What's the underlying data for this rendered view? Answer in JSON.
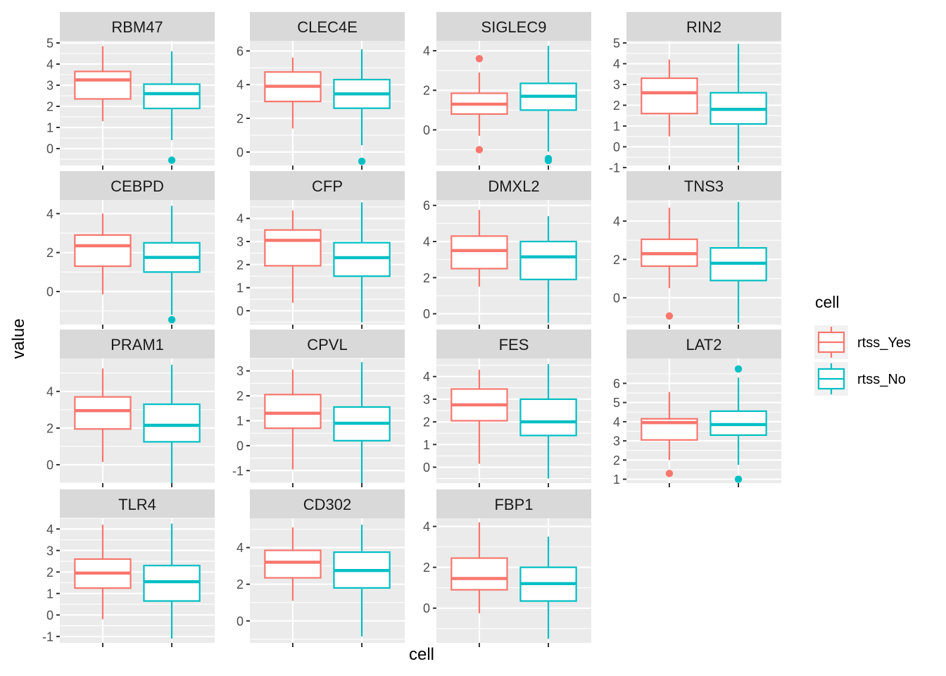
{
  "chart_data": {
    "type": "boxplot",
    "xlabel": "cell",
    "ylabel": "value",
    "legend": {
      "title": "cell",
      "placement": "right",
      "entries": [
        {
          "name": "rtss_Yes",
          "color": "#F8766D"
        },
        {
          "name": "rtss_No",
          "color": "#00BFC4"
        }
      ]
    },
    "groups": [
      "rtss_Yes",
      "rtss_No"
    ],
    "colors": {
      "rtss_Yes": "#F8766D",
      "rtss_No": "#00BFC4",
      "panel_bg": "#EBEBEB",
      "strip_bg": "#D9D9D9"
    },
    "panels": [
      {
        "title": "RBM47",
        "ylim": [
          -0.8,
          5.1
        ],
        "ticks": [
          0,
          1,
          2,
          3,
          4,
          5
        ],
        "boxes": [
          {
            "min": 1.3,
            "q1": 2.35,
            "median": 3.25,
            "q3": 3.65,
            "max": 4.85,
            "outliers": []
          },
          {
            "min": 0.4,
            "q1": 1.9,
            "median": 2.6,
            "q3": 3.05,
            "max": 4.6,
            "outliers": [
              -0.55
            ]
          }
        ]
      },
      {
        "title": "CLEC4E",
        "ylim": [
          -0.8,
          6.6
        ],
        "ticks": [
          0,
          2,
          4,
          6
        ],
        "boxes": [
          {
            "min": 1.4,
            "q1": 3.0,
            "median": 3.9,
            "q3": 4.75,
            "max": 5.6,
            "outliers": []
          },
          {
            "min": 0.4,
            "q1": 2.6,
            "median": 3.45,
            "q3": 4.3,
            "max": 6.1,
            "outliers": [
              -0.55
            ]
          }
        ]
      },
      {
        "title": "SIGLEC9",
        "ylim": [
          -1.8,
          4.5
        ],
        "ticks": [
          0,
          2,
          4
        ],
        "boxes": [
          {
            "min": -0.3,
            "q1": 0.8,
            "median": 1.3,
            "q3": 1.85,
            "max": 2.9,
            "outliers": [
              3.6,
              -1.0
            ]
          },
          {
            "min": -1.1,
            "q1": 1.0,
            "median": 1.7,
            "q3": 2.35,
            "max": 4.25,
            "outliers": [
              -1.45,
              -1.55
            ]
          }
        ]
      },
      {
        "title": "RIN2",
        "ylim": [
          -0.9,
          5.1
        ],
        "ticks": [
          -1,
          0,
          1,
          2,
          3,
          4,
          5
        ],
        "boxes": [
          {
            "min": 0.5,
            "q1": 1.6,
            "median": 2.6,
            "q3": 3.3,
            "max": 4.2,
            "outliers": []
          },
          {
            "min": -0.75,
            "q1": 1.1,
            "median": 1.8,
            "q3": 2.6,
            "max": 4.95,
            "outliers": []
          }
        ]
      },
      {
        "title": "CEBPD",
        "ylim": [
          -1.7,
          4.7
        ],
        "ticks": [
          0,
          2,
          4
        ],
        "boxes": [
          {
            "min": -0.15,
            "q1": 1.3,
            "median": 2.35,
            "q3": 2.9,
            "max": 4.0,
            "outliers": []
          },
          {
            "min": -1.2,
            "q1": 1.0,
            "median": 1.75,
            "q3": 2.5,
            "max": 4.4,
            "outliers": [
              -1.45
            ]
          }
        ]
      },
      {
        "title": "CFP",
        "ylim": [
          -0.6,
          4.8
        ],
        "ticks": [
          0,
          1,
          2,
          3,
          4
        ],
        "boxes": [
          {
            "min": 0.35,
            "q1": 1.95,
            "median": 3.05,
            "q3": 3.5,
            "max": 4.35,
            "outliers": []
          },
          {
            "min": -0.5,
            "q1": 1.5,
            "median": 2.3,
            "q3": 2.95,
            "max": 4.7,
            "outliers": []
          }
        ]
      },
      {
        "title": "DMXL2",
        "ylim": [
          -0.6,
          6.3
        ],
        "ticks": [
          0,
          2,
          4,
          6
        ],
        "boxes": [
          {
            "min": 1.5,
            "q1": 2.5,
            "median": 3.5,
            "q3": 4.3,
            "max": 5.75,
            "outliers": []
          },
          {
            "min": -0.5,
            "q1": 1.9,
            "median": 3.15,
            "q3": 4.0,
            "max": 5.4,
            "outliers": []
          }
        ]
      },
      {
        "title": "TNS3",
        "ylim": [
          -1.4,
          5.1
        ],
        "ticks": [
          0,
          2,
          4
        ],
        "boxes": [
          {
            "min": 0.5,
            "q1": 1.65,
            "median": 2.3,
            "q3": 3.05,
            "max": 4.7,
            "outliers": [
              -0.95
            ]
          },
          {
            "min": -1.3,
            "q1": 0.9,
            "median": 1.8,
            "q3": 2.6,
            "max": 5.0,
            "outliers": []
          }
        ]
      },
      {
        "title": "PRAM1",
        "ylim": [
          -1.0,
          5.8
        ],
        "ticks": [
          0,
          2,
          4
        ],
        "boxes": [
          {
            "min": 0.15,
            "q1": 1.95,
            "median": 2.95,
            "q3": 3.7,
            "max": 5.25,
            "outliers": []
          },
          {
            "min": -1.0,
            "q1": 1.25,
            "median": 2.15,
            "q3": 3.3,
            "max": 5.45,
            "outliers": []
          }
        ]
      },
      {
        "title": "CPVL",
        "ylim": [
          -1.5,
          3.5
        ],
        "ticks": [
          -1,
          0,
          1,
          2,
          3
        ],
        "boxes": [
          {
            "min": -0.95,
            "q1": 0.7,
            "median": 1.3,
            "q3": 2.05,
            "max": 3.05,
            "outliers": []
          },
          {
            "min": -1.5,
            "q1": 0.2,
            "median": 0.9,
            "q3": 1.55,
            "max": 3.35,
            "outliers": []
          }
        ]
      },
      {
        "title": "FES",
        "ylim": [
          -0.7,
          4.8
        ],
        "ticks": [
          0,
          1,
          2,
          3,
          4
        ],
        "boxes": [
          {
            "min": 0.15,
            "q1": 2.05,
            "median": 2.75,
            "q3": 3.45,
            "max": 4.3,
            "outliers": []
          },
          {
            "min": -0.5,
            "q1": 1.4,
            "median": 2.0,
            "q3": 3.0,
            "max": 4.55,
            "outliers": []
          }
        ]
      },
      {
        "title": "LAT2",
        "ylim": [
          0.8,
          7.3
        ],
        "ticks": [
          1,
          2,
          3,
          4,
          5,
          6
        ],
        "boxes": [
          {
            "min": 2.0,
            "q1": 3.05,
            "median": 3.95,
            "q3": 4.15,
            "max": 5.55,
            "outliers": [
              1.3
            ]
          },
          {
            "min": 1.75,
            "q1": 3.3,
            "median": 3.85,
            "q3": 4.55,
            "max": 6.3,
            "outliers": [
              6.75,
              1.0
            ]
          }
        ]
      },
      {
        "title": "TLR4",
        "ylim": [
          -1.3,
          4.5
        ],
        "ticks": [
          -1,
          0,
          1,
          2,
          3,
          4
        ],
        "boxes": [
          {
            "min": -0.2,
            "q1": 1.25,
            "median": 1.95,
            "q3": 2.6,
            "max": 4.2,
            "outliers": []
          },
          {
            "min": -1.1,
            "q1": 0.65,
            "median": 1.55,
            "q3": 2.3,
            "max": 4.25,
            "outliers": []
          }
        ]
      },
      {
        "title": "CD302",
        "ylim": [
          -1.2,
          5.6
        ],
        "ticks": [
          0,
          2,
          4
        ],
        "boxes": [
          {
            "min": 1.1,
            "q1": 2.35,
            "median": 3.2,
            "q3": 3.85,
            "max": 5.1,
            "outliers": []
          },
          {
            "min": -0.85,
            "q1": 1.8,
            "median": 2.75,
            "q3": 3.75,
            "max": 5.25,
            "outliers": []
          }
        ]
      },
      {
        "title": "FBP1",
        "ylim": [
          -1.7,
          4.4
        ],
        "ticks": [
          0,
          2,
          4
        ],
        "boxes": [
          {
            "min": -0.25,
            "q1": 0.9,
            "median": 1.45,
            "q3": 2.45,
            "max": 4.2,
            "outliers": []
          },
          {
            "min": -1.5,
            "q1": 0.35,
            "median": 1.2,
            "q3": 2.0,
            "max": 3.5,
            "outliers": []
          }
        ]
      }
    ]
  }
}
